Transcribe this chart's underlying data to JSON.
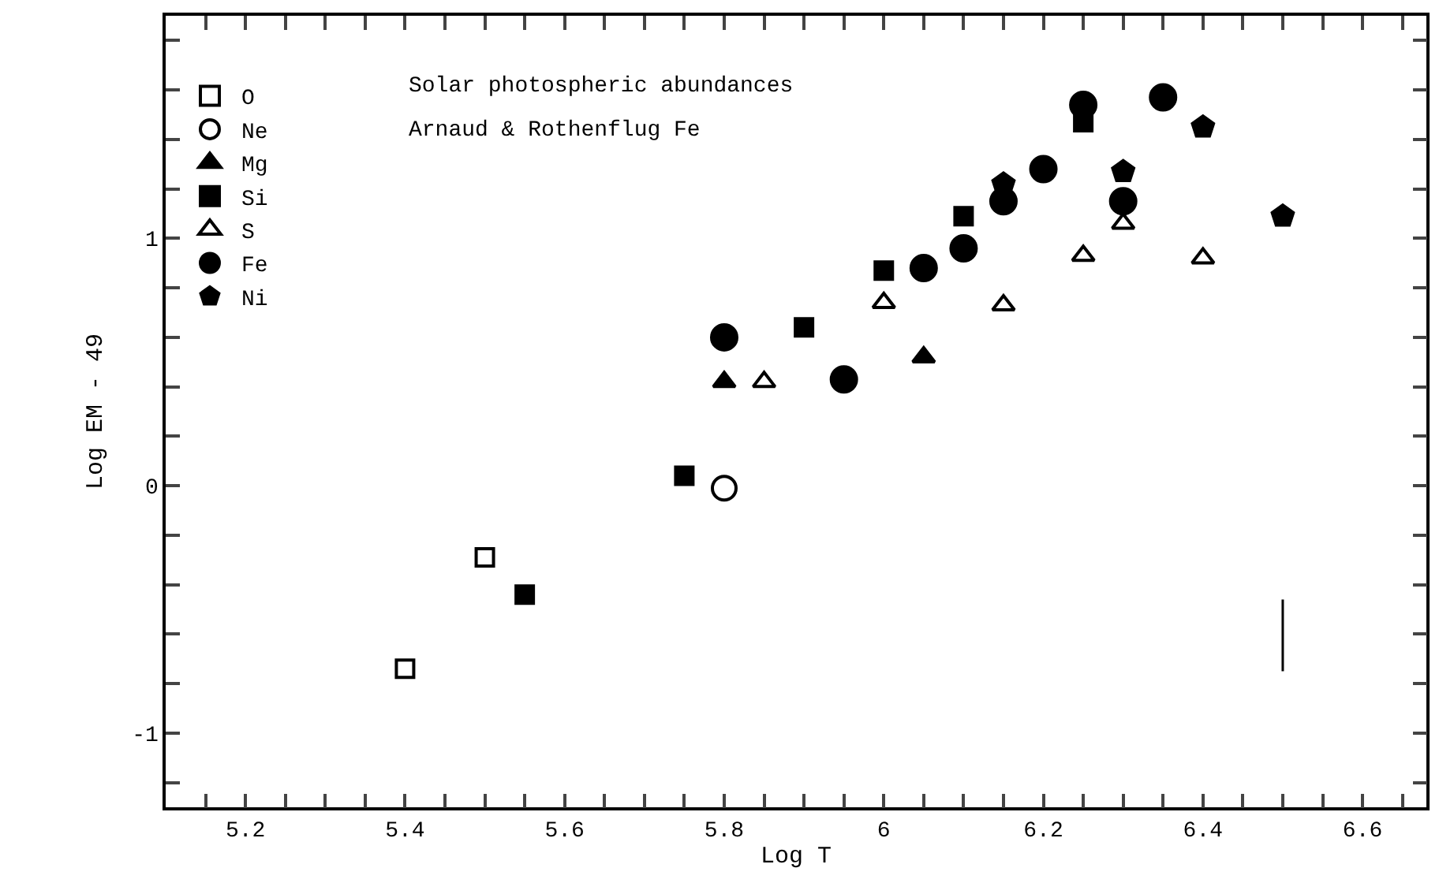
{
  "chart_data": {
    "type": "scatter",
    "xlabel": "Log T",
    "ylabel": "Log EM - 49",
    "annotations": [
      "Solar photospheric abundances",
      "Arnaud & Rothenflug Fe"
    ],
    "xlim": [
      5.1,
      6.68
    ],
    "ylim": [
      -1.3,
      1.9
    ],
    "xticks": [
      {
        "value": 5.15,
        "label": null
      },
      {
        "value": 5.2,
        "label": "5.2"
      },
      {
        "value": 5.25,
        "label": null
      },
      {
        "value": 5.3,
        "label": null
      },
      {
        "value": 5.35,
        "label": null
      },
      {
        "value": 5.4,
        "label": "5.4"
      },
      {
        "value": 5.45,
        "label": null
      },
      {
        "value": 5.5,
        "label": null
      },
      {
        "value": 5.55,
        "label": null
      },
      {
        "value": 5.6,
        "label": "5.6"
      },
      {
        "value": 5.65,
        "label": null
      },
      {
        "value": 5.7,
        "label": null
      },
      {
        "value": 5.75,
        "label": null
      },
      {
        "value": 5.8,
        "label": "5.8"
      },
      {
        "value": 5.85,
        "label": null
      },
      {
        "value": 5.9,
        "label": null
      },
      {
        "value": 5.95,
        "label": null
      },
      {
        "value": 6,
        "label": "6"
      },
      {
        "value": 6.05,
        "label": null
      },
      {
        "value": 6.1,
        "label": null
      },
      {
        "value": 6.15,
        "label": null
      },
      {
        "value": 6.2,
        "label": "6.2"
      },
      {
        "value": 6.25,
        "label": null
      },
      {
        "value": 6.3,
        "label": null
      },
      {
        "value": 6.35,
        "label": null
      },
      {
        "value": 6.4,
        "label": "6.4"
      },
      {
        "value": 6.45,
        "label": null
      },
      {
        "value": 6.5,
        "label": null
      },
      {
        "value": 6.55,
        "label": null
      },
      {
        "value": 6.6,
        "label": "6.6"
      },
      {
        "value": 6.65,
        "label": null
      }
    ],
    "yticks": [
      {
        "value": -1.2,
        "label": null
      },
      {
        "value": -1,
        "label": "-1"
      },
      {
        "value": -0.8,
        "label": null
      },
      {
        "value": -0.6,
        "label": null
      },
      {
        "value": -0.4,
        "label": null
      },
      {
        "value": -0.2,
        "label": null
      },
      {
        "value": 0,
        "label": "0"
      },
      {
        "value": 0.2,
        "label": null
      },
      {
        "value": 0.4,
        "label": null
      },
      {
        "value": 0.6,
        "label": null
      },
      {
        "value": 0.8,
        "label": null
      },
      {
        "value": 1,
        "label": "1"
      },
      {
        "value": 1.2,
        "label": null
      },
      {
        "value": 1.4,
        "label": null
      },
      {
        "value": 1.6,
        "label": null
      },
      {
        "value": 1.8,
        "label": null
      }
    ],
    "grid": false,
    "legend": "top left",
    "series": [
      {
        "name": "O",
        "color": "#000000",
        "marker": "square-open",
        "x": [
          5.4,
          5.5
        ],
        "values": [
          -0.74,
          -0.29
        ]
      },
      {
        "name": "Ne",
        "color": "#000000",
        "marker": "circle-open",
        "x": [
          5.8
        ],
        "values": [
          -0.01
        ]
      },
      {
        "name": "Mg",
        "color": "#000000",
        "marker": "triangle",
        "x": [
          5.8,
          6.05
        ],
        "values": [
          0.42,
          0.52
        ]
      },
      {
        "name": "Si",
        "color": "#000000",
        "marker": "square",
        "x": [
          5.55,
          5.75,
          5.9,
          6.0,
          6.1,
          6.25
        ],
        "values": [
          -0.44,
          0.04,
          0.64,
          0.87,
          1.09,
          1.47
        ]
      },
      {
        "name": "S",
        "color": "#000000",
        "marker": "triangle-open",
        "x": [
          5.85,
          6.0,
          6.15,
          6.25,
          6.3,
          6.4
        ],
        "values": [
          0.42,
          0.74,
          0.73,
          0.93,
          1.06,
          0.92
        ]
      },
      {
        "name": "Fe",
        "color": "#000000",
        "marker": "circle",
        "x": [
          5.8,
          5.95,
          6.05,
          6.1,
          6.15,
          6.2,
          6.25,
          6.3,
          6.35
        ],
        "values": [
          0.6,
          0.43,
          0.88,
          0.96,
          1.15,
          1.28,
          1.54,
          1.15,
          1.57
        ]
      },
      {
        "name": "Ni",
        "color": "#000000",
        "x": [
          6.15,
          6.3,
          6.4,
          6.5
        ],
        "values": [
          1.22,
          1.27,
          1.45,
          1.09
        ]
      },
      {
        "type": "line",
        "color": "#000000",
        "marker": "none",
        "line_style": "solid",
        "x": [
          6.5,
          6.5
        ],
        "values": [
          -0.75,
          -0.46
        ]
      }
    ]
  }
}
